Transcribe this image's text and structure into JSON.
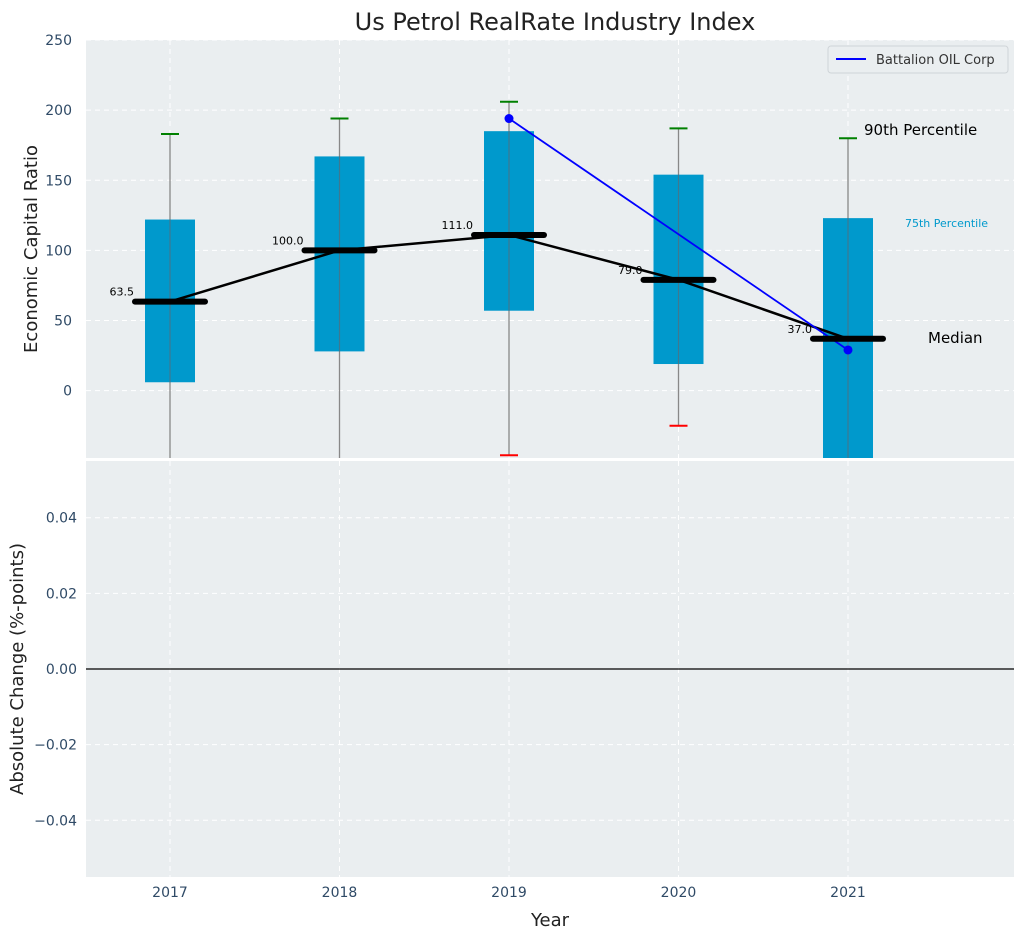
{
  "chart_data": [
    {
      "type": "box",
      "title": "Us Petrol RealRate Industry Index",
      "xlabel": "",
      "ylabel": "Economic Capital Ratio",
      "ylim": [
        -48,
        250
      ],
      "yticks": [
        0,
        50,
        100,
        150,
        200,
        250
      ],
      "categories": [
        "2017",
        "2018",
        "2019",
        "2020",
        "2021"
      ],
      "boxes": [
        {
          "year": "2017",
          "q25": 6,
          "q75": 122,
          "median": 63.5,
          "median_label": "63.5",
          "p90": 183,
          "p10": null
        },
        {
          "year": "2018",
          "q25": 28,
          "q75": 167,
          "median": 100.0,
          "median_label": "100.0",
          "p90": 194,
          "p10": null
        },
        {
          "year": "2019",
          "q25": 57,
          "q75": 185,
          "median": 111.0,
          "median_label": "111.0",
          "p90": 206,
          "p10": -46
        },
        {
          "year": "2020",
          "q25": 19,
          "q75": 154,
          "median": 79.0,
          "median_label": "79.0",
          "p90": 187,
          "p10": -25
        },
        {
          "year": "2021",
          "q25": -48,
          "q75": 123,
          "median": 37.0,
          "median_label": "37.0",
          "p90": 180,
          "p10": null
        }
      ],
      "series": [
        {
          "name": "Industry Median",
          "color": "#000000",
          "x": [
            "2017",
            "2018",
            "2019",
            "2020",
            "2021"
          ],
          "values": [
            63.5,
            100.0,
            111.0,
            79.0,
            37.0
          ]
        },
        {
          "name": "Battalion OIL Corp",
          "color": "#0000ff",
          "x": [
            "2019",
            "2021"
          ],
          "values": [
            194,
            29
          ]
        }
      ],
      "legend": {
        "entries": [
          "Battalion OIL Corp"
        ],
        "placement": "top-right"
      },
      "annotations": {
        "p90": "90th Percentile",
        "p75": "75th Percentile",
        "median": "Median"
      },
      "colors": {
        "box": "#0099cc",
        "p90_cap": "#008000",
        "p10_cap": "#ff0000",
        "whisker": "#888888",
        "grid_bg": "#eaeef0"
      }
    },
    {
      "type": "line",
      "title": "",
      "xlabel": "Year",
      "ylabel": "Absolute Change (%-points)",
      "ylim": [
        -0.055,
        0.055
      ],
      "yticks": [
        -0.04,
        -0.02,
        0.0,
        0.02,
        0.04
      ],
      "ytick_labels": [
        "−0.04",
        "−0.02",
        "0.00",
        "0.02",
        "0.04"
      ],
      "categories": [
        "2017",
        "2018",
        "2019",
        "2020",
        "2021"
      ],
      "reference_line": 0.0
    }
  ]
}
